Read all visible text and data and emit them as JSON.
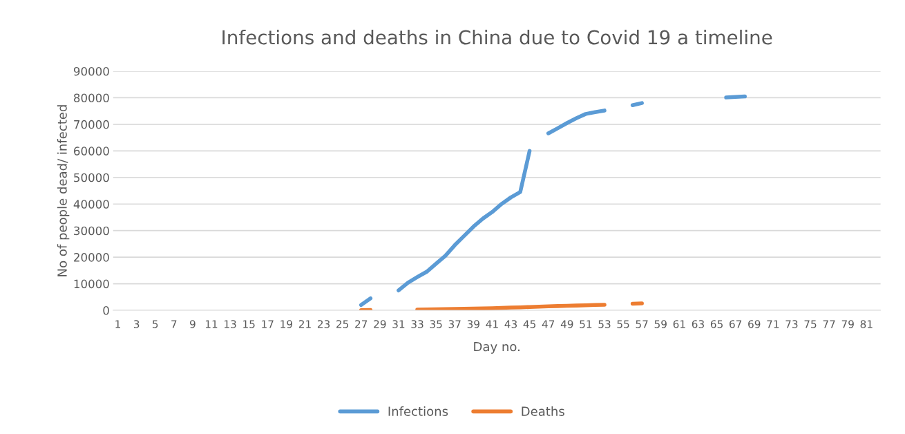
{
  "chart_data": {
    "type": "line",
    "title": "Infections and deaths in China due to Covid 19 a timeline",
    "xlabel": "Day no.",
    "ylabel": "No of people dead/ infected",
    "categories": [
      "1",
      null,
      "3",
      null,
      "5",
      null,
      "7",
      null,
      "9",
      null,
      "11",
      null,
      "13",
      null,
      "15",
      null,
      "17",
      null,
      "19",
      null,
      "21",
      null,
      "23",
      null,
      "25",
      null,
      "27",
      null,
      "29",
      null,
      "31",
      null,
      "33",
      null,
      "35",
      null,
      "37",
      null,
      "39",
      null,
      "41",
      null,
      "43",
      null,
      "45",
      null,
      "47",
      null,
      "49",
      null,
      "51",
      null,
      "53",
      null,
      "55",
      null,
      "57",
      null,
      "59",
      null,
      "61",
      null,
      "63",
      null,
      "65",
      null,
      "67",
      null,
      "69",
      null,
      "71",
      null,
      "73",
      null,
      "75",
      null,
      "77",
      null,
      "79",
      null,
      "81",
      null
    ],
    "series": [
      {
        "name": "Infections",
        "color": "#5b9bd5",
        "values": [
          null,
          null,
          null,
          null,
          null,
          null,
          null,
          null,
          null,
          null,
          null,
          null,
          null,
          null,
          null,
          null,
          null,
          null,
          null,
          null,
          null,
          null,
          null,
          null,
          null,
          null,
          2000,
          4500,
          null,
          null,
          7500,
          10400,
          12500,
          14500,
          17500,
          20500,
          24500,
          28000,
          31500,
          34500,
          37000,
          40000,
          42500,
          44500,
          60000,
          null,
          66600,
          68500,
          70500,
          72300,
          73900,
          74600,
          75200,
          null,
          null,
          77200,
          78000,
          null,
          null,
          null,
          null,
          null,
          null,
          null,
          null,
          80100,
          80300,
          80500,
          null,
          null,
          null,
          null,
          null,
          null,
          null,
          null,
          null,
          null,
          null,
          null,
          null,
          null
        ]
      },
      {
        "name": "Deaths",
        "color": "#ed7d31",
        "values": [
          null,
          null,
          null,
          null,
          null,
          null,
          null,
          null,
          null,
          null,
          null,
          null,
          null,
          null,
          null,
          null,
          null,
          null,
          null,
          null,
          null,
          null,
          null,
          null,
          null,
          null,
          80,
          100,
          null,
          null,
          null,
          null,
          250,
          300,
          360,
          430,
          490,
          560,
          640,
          720,
          810,
          910,
          1020,
          1120,
          1260,
          1380,
          1500,
          1600,
          1700,
          1800,
          1900,
          2000,
          2100,
          null,
          null,
          2500,
          2600,
          null,
          null,
          null,
          null,
          null,
          null,
          null,
          null,
          null,
          null,
          null,
          null,
          null,
          null,
          null,
          null,
          null,
          null,
          null,
          null,
          null,
          null,
          null,
          null,
          null
        ]
      }
    ],
    "ylim": [
      0,
      90000
    ],
    "yticks": [
      0,
      10000,
      20000,
      30000,
      40000,
      50000,
      60000,
      70000,
      80000,
      90000
    ],
    "grid": "y",
    "legend": "bottom",
    "marker": "none",
    "line_style": "solid"
  }
}
